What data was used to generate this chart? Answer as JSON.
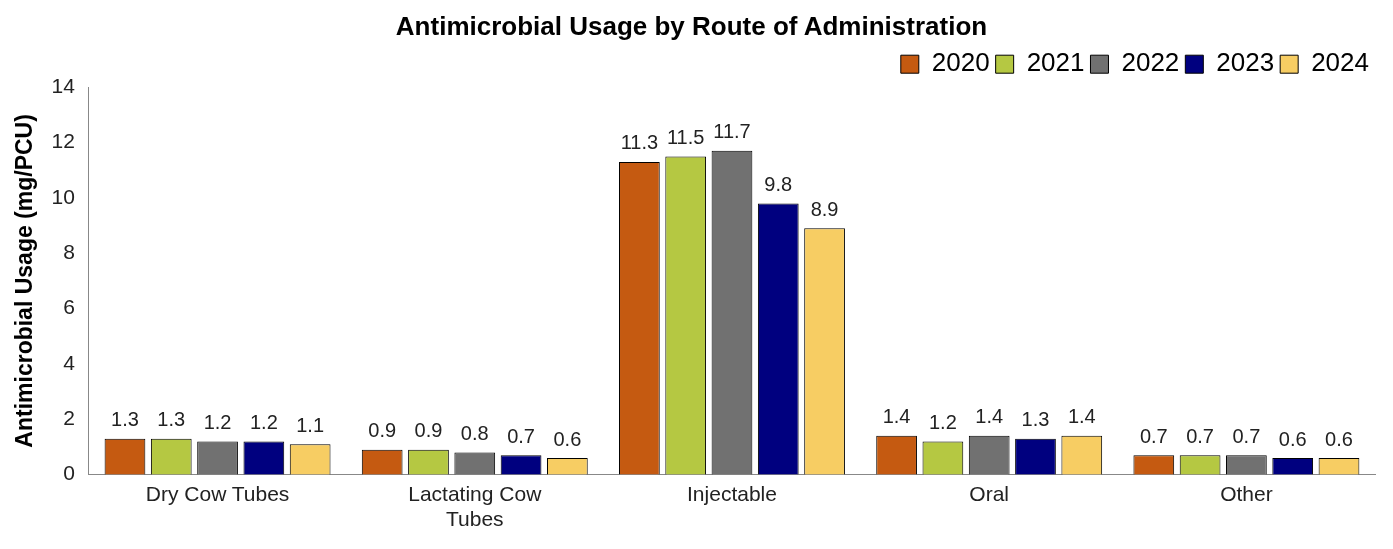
{
  "chart_data": {
    "type": "bar",
    "title": "Antimicrobial Usage by Route of Administration",
    "ylabel": "Antimicrobial Usage (mg/PCU)",
    "categories": [
      "Dry Cow Tubes",
      "Lactating Cow Tubes",
      "Injectable",
      "Oral",
      "Other"
    ],
    "series": [
      {
        "name": "2020",
        "color": "#c55a11",
        "values": [
          1.3,
          0.9,
          11.3,
          1.4,
          0.7
        ]
      },
      {
        "name": "2021",
        "color": "#b5c842",
        "values": [
          1.3,
          0.9,
          11.5,
          1.2,
          0.7
        ]
      },
      {
        "name": "2022",
        "color": "#717171",
        "values": [
          1.2,
          0.8,
          11.7,
          1.4,
          0.7
        ]
      },
      {
        "name": "2023",
        "color": "#00007f",
        "values": [
          1.2,
          0.7,
          9.8,
          1.3,
          0.6
        ]
      },
      {
        "name": "2024",
        "color": "#f7cd63",
        "values": [
          1.1,
          0.6,
          8.9,
          1.4,
          0.6
        ]
      }
    ],
    "ylim": [
      0,
      14
    ],
    "yticks": [
      0,
      2,
      4,
      6,
      8,
      10,
      12,
      14
    ],
    "grid": false,
    "legend": "top right",
    "data_labels": true
  }
}
